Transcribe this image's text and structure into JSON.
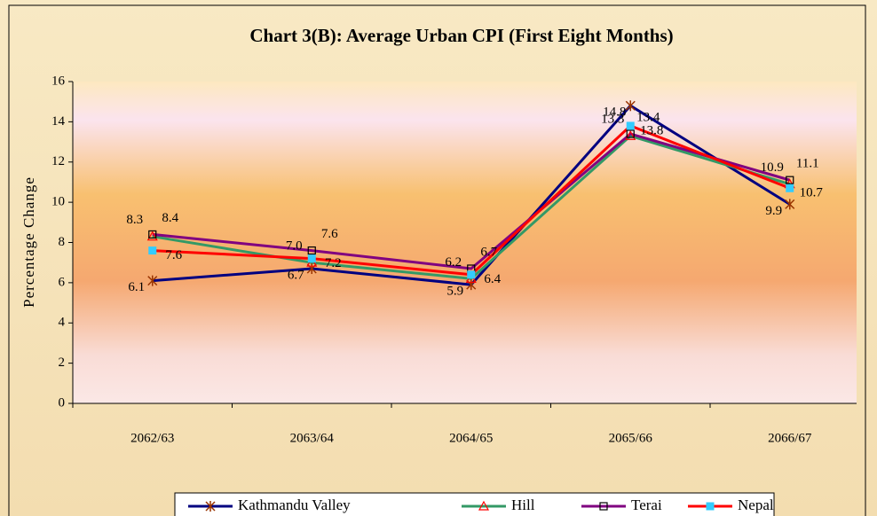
{
  "chart_data": {
    "type": "line",
    "title": "Chart 3(B): Average Urban CPI (First Eight Months)",
    "ylabel": "Percentage Change",
    "categories": [
      "2062/63",
      "2063/64",
      "2064/65",
      "2065/66",
      "2066/67"
    ],
    "ylim": [
      0,
      16
    ],
    "yticks": [
      0,
      2,
      4,
      6,
      8,
      10,
      12,
      14,
      16
    ],
    "legend": "bottom",
    "series": [
      {
        "name": "Kathmandu Valley",
        "color": "#000080",
        "marker": "star",
        "marker_color": "#993300",
        "values": [
          6.1,
          6.7,
          5.9,
          14.8,
          9.9
        ],
        "value_labels": [
          "6.1",
          "6.7",
          "5.9",
          "14.8",
          "9.9"
        ]
      },
      {
        "name": "Hill",
        "color": "#339966",
        "marker": "triangle",
        "marker_color": "#ff0000",
        "values": [
          8.3,
          7.0,
          6.2,
          13.3,
          10.9
        ],
        "value_labels": [
          "8.3",
          "7.0",
          "6.2",
          "13.3",
          "10.9"
        ]
      },
      {
        "name": "Terai",
        "color": "#800080",
        "marker": "square",
        "marker_color": "#000000",
        "values": [
          8.4,
          7.6,
          6.7,
          13.4,
          11.1
        ],
        "value_labels": [
          "8.4",
          "7.6",
          "6.7",
          "13.4",
          "11.1"
        ]
      },
      {
        "name": "Nepal",
        "color": "#ff0000",
        "marker": "filled-square",
        "marker_color": "#33ccff",
        "values": [
          7.6,
          7.2,
          6.4,
          13.8,
          10.7
        ],
        "value_labels": [
          "7.6",
          "7.2",
          "6.4",
          "13.8",
          "10.7"
        ]
      }
    ]
  }
}
